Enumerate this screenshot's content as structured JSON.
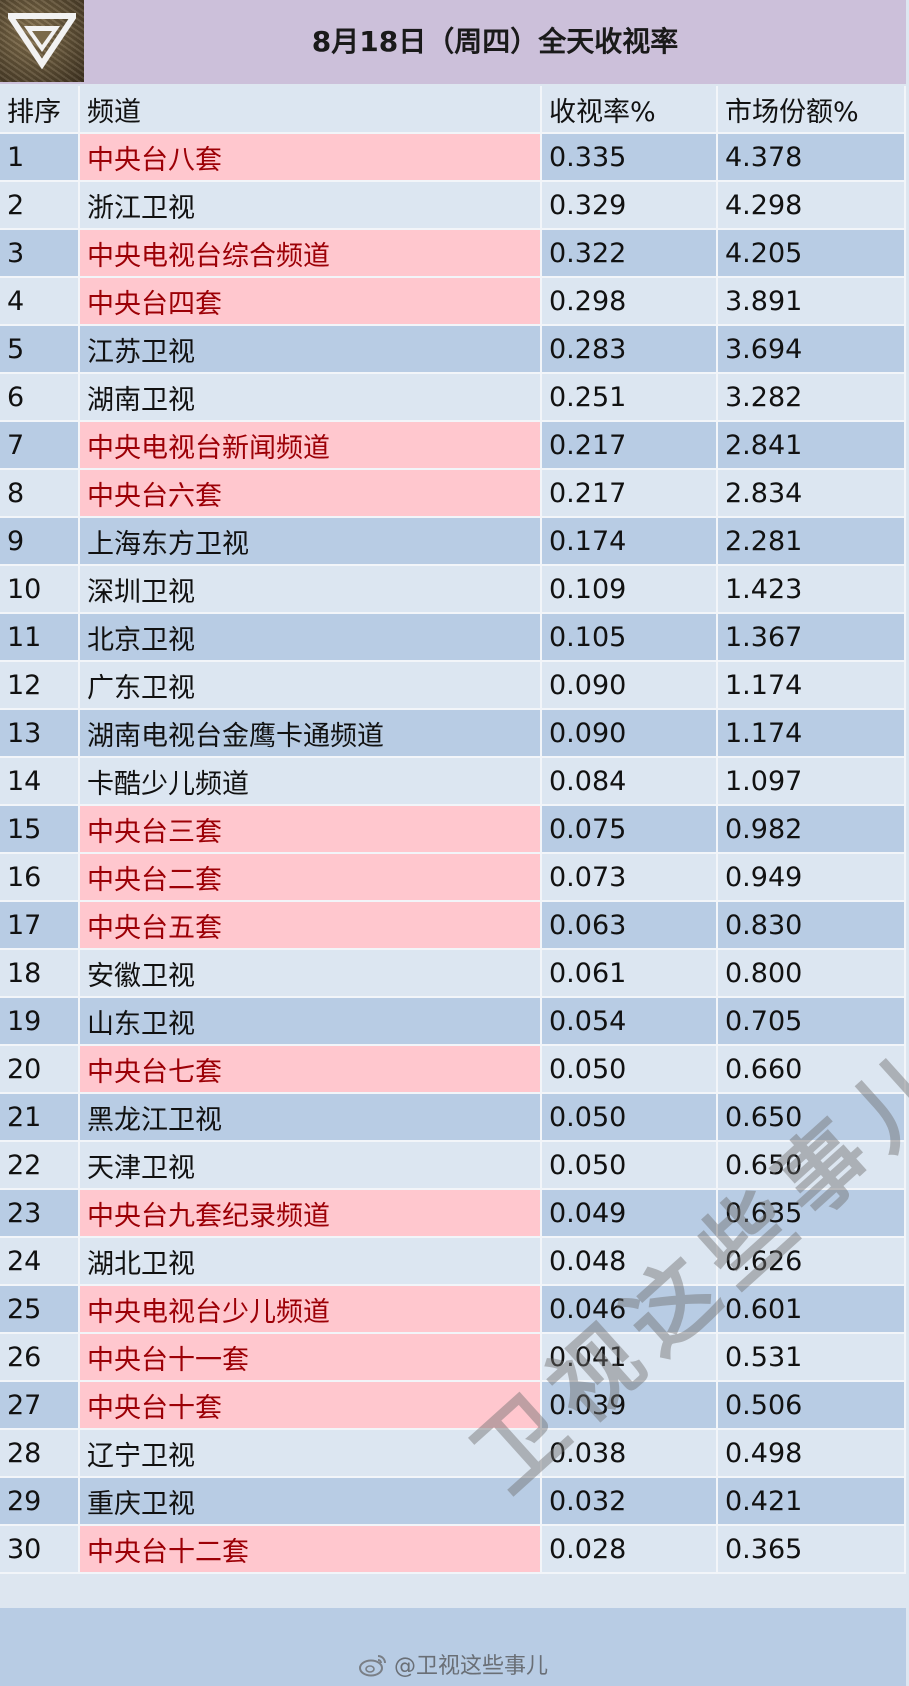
{
  "header": {
    "title": "8月18日（周四）全天收视率"
  },
  "columns": {
    "rank": "排序",
    "channel": "频道",
    "rating": "收视率%",
    "share": "市场份额%"
  },
  "rows": [
    {
      "rank": "1",
      "channel": "中央台八套",
      "rating": "0.335",
      "share": "4.378",
      "hl": true
    },
    {
      "rank": "2",
      "channel": "浙江卫视",
      "rating": "0.329",
      "share": "4.298",
      "hl": false
    },
    {
      "rank": "3",
      "channel": "中央电视台综合频道",
      "rating": "0.322",
      "share": "4.205",
      "hl": true
    },
    {
      "rank": "4",
      "channel": "中央台四套",
      "rating": "0.298",
      "share": "3.891",
      "hl": true
    },
    {
      "rank": "5",
      "channel": "江苏卫视",
      "rating": "0.283",
      "share": "3.694",
      "hl": false
    },
    {
      "rank": "6",
      "channel": "湖南卫视",
      "rating": "0.251",
      "share": "3.282",
      "hl": false
    },
    {
      "rank": "7",
      "channel": "中央电视台新闻频道",
      "rating": "0.217",
      "share": "2.841",
      "hl": true
    },
    {
      "rank": "8",
      "channel": "中央台六套",
      "rating": "0.217",
      "share": "2.834",
      "hl": true
    },
    {
      "rank": "9",
      "channel": "上海东方卫视",
      "rating": "0.174",
      "share": "2.281",
      "hl": false
    },
    {
      "rank": "10",
      "channel": "深圳卫视",
      "rating": "0.109",
      "share": "1.423",
      "hl": false
    },
    {
      "rank": "11",
      "channel": "北京卫视",
      "rating": "0.105",
      "share": "1.367",
      "hl": false
    },
    {
      "rank": "12",
      "channel": "广东卫视",
      "rating": "0.090",
      "share": "1.174",
      "hl": false
    },
    {
      "rank": "13",
      "channel": "湖南电视台金鹰卡通频道",
      "rating": "0.090",
      "share": "1.174",
      "hl": false
    },
    {
      "rank": "14",
      "channel": "卡酷少儿频道",
      "rating": "0.084",
      "share": "1.097",
      "hl": false
    },
    {
      "rank": "15",
      "channel": "中央台三套",
      "rating": "0.075",
      "share": "0.982",
      "hl": true
    },
    {
      "rank": "16",
      "channel": "中央台二套",
      "rating": "0.073",
      "share": "0.949",
      "hl": true
    },
    {
      "rank": "17",
      "channel": "中央台五套",
      "rating": "0.063",
      "share": "0.830",
      "hl": true
    },
    {
      "rank": "18",
      "channel": "安徽卫视",
      "rating": "0.061",
      "share": "0.800",
      "hl": false
    },
    {
      "rank": "19",
      "channel": "山东卫视",
      "rating": "0.054",
      "share": "0.705",
      "hl": false
    },
    {
      "rank": "20",
      "channel": "中央台七套",
      "rating": "0.050",
      "share": "0.660",
      "hl": true
    },
    {
      "rank": "21",
      "channel": "黑龙江卫视",
      "rating": "0.050",
      "share": "0.650",
      "hl": false
    },
    {
      "rank": "22",
      "channel": "天津卫视",
      "rating": "0.050",
      "share": "0.650",
      "hl": false
    },
    {
      "rank": "23",
      "channel": "中央台九套纪录频道",
      "rating": "0.049",
      "share": "0.635",
      "hl": true
    },
    {
      "rank": "24",
      "channel": "湖北卫视",
      "rating": "0.048",
      "share": "0.626",
      "hl": false
    },
    {
      "rank": "25",
      "channel": "中央电视台少儿频道",
      "rating": "0.046",
      "share": "0.601",
      "hl": true
    },
    {
      "rank": "26",
      "channel": "中央台十一套",
      "rating": "0.041",
      "share": "0.531",
      "hl": true
    },
    {
      "rank": "27",
      "channel": "中央台十套",
      "rating": "0.039",
      "share": "0.506",
      "hl": true
    },
    {
      "rank": "28",
      "channel": "辽宁卫视",
      "rating": "0.038",
      "share": "0.498",
      "hl": false
    },
    {
      "rank": "29",
      "channel": "重庆卫视",
      "rating": "0.032",
      "share": "0.421",
      "hl": false
    },
    {
      "rank": "30",
      "channel": "中央台十二套",
      "rating": "0.028",
      "share": "0.365",
      "hl": true
    }
  ],
  "footer": {
    "weibo_handle": "@卫视这些事儿"
  },
  "watermark": "卫视这些事儿",
  "colors": {
    "highlight_bg": "#ffc7ce",
    "highlight_text": "#9c0006",
    "row_dark": "#b8cce4",
    "row_light": "#dce6f1",
    "header_bg": "#ccc0da"
  }
}
